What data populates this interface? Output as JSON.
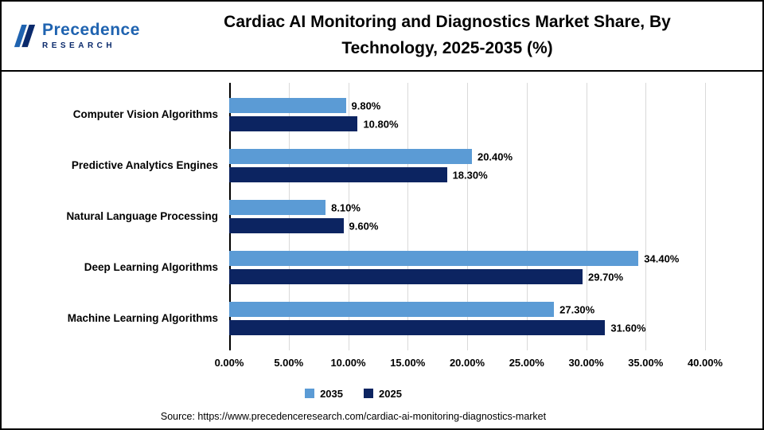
{
  "logo": {
    "name": "Precedence",
    "subname": "RESEARCH"
  },
  "header": {
    "title_line1": "Cardiac AI Monitoring and Diagnostics Market  Share, By",
    "title_line2": "Technology, 2025-2035 (%)"
  },
  "source": "Source: https://www.precedenceresearch.com/cardiac-ai-monitoring-diagnostics-market",
  "chart_data": {
    "type": "bar",
    "orientation": "horizontal",
    "title": "Cardiac AI Monitoring and Diagnostics Market Share, By Technology, 2025-2035 (%)",
    "categories": [
      "Computer Vision Algorithms",
      "Predictive Analytics Engines",
      "Natural Language Processing",
      "Deep Learning Algorithms",
      "Machine Learning Algorithms"
    ],
    "series": [
      {
        "name": "2035",
        "color": "#5B9BD5",
        "values": [
          9.8,
          20.4,
          8.1,
          34.4,
          27.3
        ],
        "labels": [
          "9.80%",
          "20.40%",
          "8.10%",
          "34.40%",
          "27.30%"
        ]
      },
      {
        "name": "2025",
        "color": "#0C2461",
        "values": [
          10.8,
          18.3,
          9.6,
          29.7,
          31.6
        ],
        "labels": [
          "10.80%",
          "18.30%",
          "9.60%",
          "29.70%",
          "31.60%"
        ]
      }
    ],
    "xlim": [
      0,
      40
    ],
    "x_ticks": [
      "0.00%",
      "5.00%",
      "10.00%",
      "15.00%",
      "20.00%",
      "25.00%",
      "30.00%",
      "35.00%",
      "40.00%"
    ],
    "grid": true,
    "legend_position": "bottom"
  }
}
